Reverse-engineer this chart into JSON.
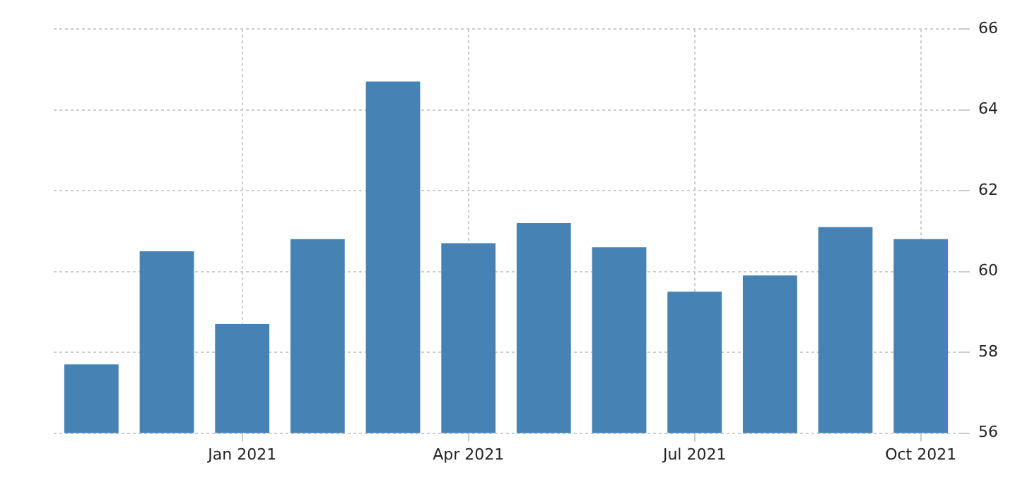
{
  "chart_data": {
    "type": "bar",
    "categories": [
      null,
      null,
      "Jan 2021",
      null,
      null,
      "Apr 2021",
      null,
      null,
      "Jul 2021",
      null,
      null,
      "Oct 2021"
    ],
    "values": [
      57.7,
      60.5,
      58.7,
      60.8,
      64.7,
      60.7,
      61.2,
      60.6,
      59.5,
      59.9,
      61.1,
      60.8
    ],
    "color": "#4682b4",
    "ylim": [
      56,
      66
    ],
    "yticks": [
      56,
      58,
      60,
      62,
      64,
      66
    ],
    "grid": true
  }
}
